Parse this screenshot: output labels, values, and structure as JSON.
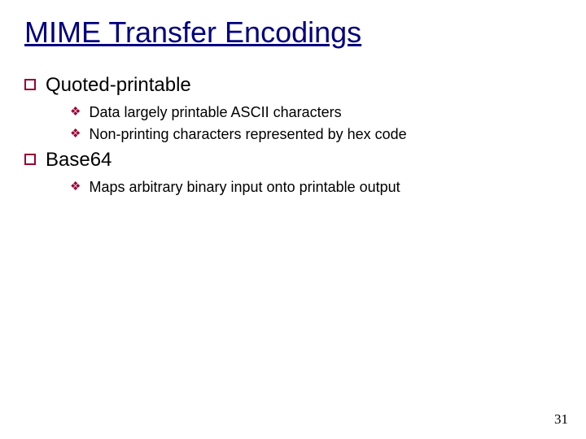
{
  "slide": {
    "title": "MIME Transfer Encodings",
    "title_color": "#000080",
    "title_fontsize": 36,
    "title_underline": true,
    "bullet_level1_border_color": "#990033",
    "bullet_level2_color": "#990033",
    "bullet_level2_glyph": "❖",
    "level1_fontsize": 24,
    "level2_fontsize": 18,
    "background_color": "#ffffff",
    "items": [
      {
        "label": "Quoted-printable",
        "children": [
          {
            "label": "Data largely printable ASCII characters"
          },
          {
            "label": "Non-printing characters represented by hex code"
          }
        ]
      },
      {
        "label": "Base64",
        "children": [
          {
            "label": "Maps arbitrary binary input onto printable output"
          }
        ]
      }
    ],
    "page_number": "31"
  }
}
